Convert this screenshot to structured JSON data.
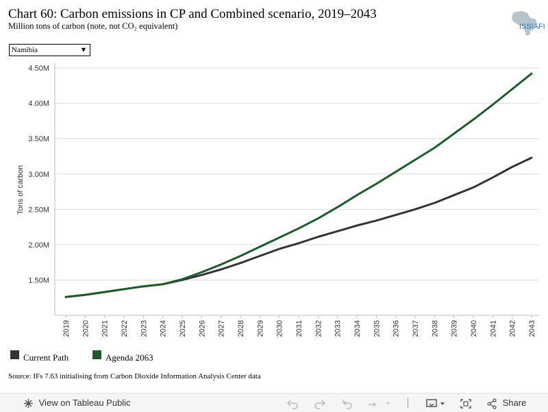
{
  "header": {
    "title": "Chart 60: Carbon emissions in CP and Combined scenario, 2019–2043",
    "subtitle": "Million tons of carbon (note, not CO₂ equivalent)",
    "logo_text": "ISS|AFI"
  },
  "filter": {
    "selected": "Namibia"
  },
  "chart_data": {
    "type": "line",
    "x": [
      2019,
      2020,
      2021,
      2022,
      2023,
      2024,
      2025,
      2026,
      2027,
      2028,
      2029,
      2030,
      2031,
      2032,
      2033,
      2034,
      2035,
      2036,
      2037,
      2038,
      2039,
      2040,
      2041,
      2042,
      2043
    ],
    "x_tick_labels": [
      "2019",
      "2020",
      "2021",
      "2022",
      "2023",
      "2024",
      "2025",
      "2026",
      "2027",
      "2028",
      "2029",
      "2030",
      "2031",
      "2032",
      "2033",
      "2034",
      "2035",
      "2036",
      "2037",
      "2038",
      "2039",
      "2040",
      "2041",
      "2042",
      "2043"
    ],
    "ylabel": "Tons of carbon",
    "ylim": [
      1.0,
      4.53
    ],
    "y_ticks": [
      1.5,
      2.0,
      2.5,
      3.0,
      3.5,
      4.0,
      4.5
    ],
    "y_tick_labels": [
      "1.50M",
      "2.00M",
      "2.50M",
      "3.00M",
      "3.50M",
      "4.00M",
      "4.50M"
    ],
    "grid": true,
    "series": [
      {
        "name": "Current Path",
        "color": "#333333",
        "values": [
          1.26,
          1.29,
          1.33,
          1.37,
          1.41,
          1.44,
          1.5,
          1.57,
          1.65,
          1.74,
          1.84,
          1.94,
          2.02,
          2.11,
          2.19,
          2.27,
          2.34,
          2.42,
          2.5,
          2.59,
          2.7,
          2.81,
          2.95,
          3.1,
          3.23
        ]
      },
      {
        "name": "Agenda 2063",
        "color": "#1f5a2c",
        "values": [
          1.26,
          1.29,
          1.33,
          1.37,
          1.41,
          1.44,
          1.51,
          1.61,
          1.72,
          1.84,
          1.97,
          2.1,
          2.23,
          2.37,
          2.53,
          2.7,
          2.86,
          3.03,
          3.2,
          3.37,
          3.57,
          3.77,
          3.98,
          4.2,
          4.42
        ]
      }
    ]
  },
  "source": "Source: IFs 7.63 initialising from Carbon Dioxide Information Analysis Center data",
  "toolbar": {
    "view_label": "View on Tableau Public",
    "share_label": "Share"
  }
}
